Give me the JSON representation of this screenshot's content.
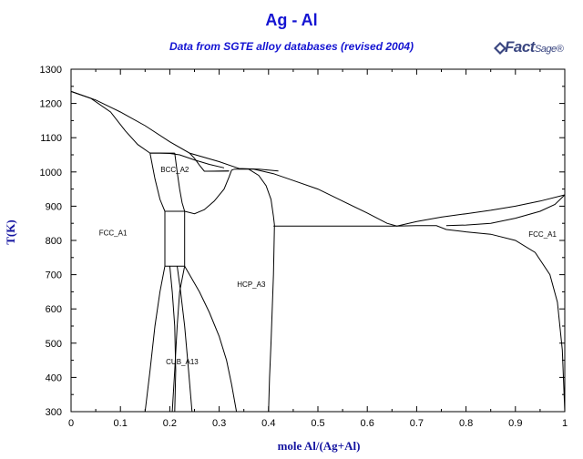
{
  "chart_data": {
    "type": "line",
    "title": "Ag - Al",
    "subtitle": "Data from SGTE alloy databases (revised 2004)",
    "xlabel": "mole Al/(Ag+Al)",
    "ylabel": "T(K)",
    "xlim": [
      0,
      1
    ],
    "ylim": [
      300,
      1300
    ],
    "x_ticks": [
      "0",
      "0.1",
      "0.2",
      "0.3",
      "0.4",
      "0.5",
      "0.6",
      "0.7",
      "0.8",
      "0.9",
      "1"
    ],
    "y_ticks": [
      "300",
      "400",
      "500",
      "600",
      "700",
      "800",
      "900",
      "1000",
      "1100",
      "1200",
      "1300"
    ],
    "grid": false,
    "phase_labels": [
      {
        "text": "FCC_A1",
        "x": 0.085,
        "y": 815
      },
      {
        "text": "BCC_A2",
        "x": 0.21,
        "y": 1000
      },
      {
        "text": "HCP_A3",
        "x": 0.365,
        "y": 665
      },
      {
        "text": "CUB_A13",
        "x": 0.225,
        "y": 438
      },
      {
        "text": "FCC_A1",
        "x": 0.955,
        "y": 810
      }
    ],
    "boundaries": [
      {
        "name": "fcc-liquidus-left",
        "points": [
          [
            0,
            1235
          ],
          [
            0.05,
            1210
          ],
          [
            0.1,
            1175
          ],
          [
            0.15,
            1135
          ],
          [
            0.2,
            1088
          ],
          [
            0.24,
            1055
          ],
          [
            0.3,
            1030
          ],
          [
            0.34,
            1010
          ],
          [
            0.38,
            1008
          ],
          [
            0.42,
            1003
          ]
        ]
      },
      {
        "name": "fcc-solidus-left",
        "points": [
          [
            0,
            1235
          ],
          [
            0.04,
            1215
          ],
          [
            0.08,
            1175
          ],
          [
            0.11,
            1120
          ],
          [
            0.135,
            1080
          ],
          [
            0.16,
            1055
          ]
        ]
      },
      {
        "name": "bcc-liquidus",
        "points": [
          [
            0.16,
            1055
          ],
          [
            0.18,
            1055
          ],
          [
            0.2,
            1054
          ],
          [
            0.22,
            1050
          ],
          [
            0.25,
            1035
          ],
          [
            0.28,
            1022
          ],
          [
            0.31,
            1012
          ]
        ]
      },
      {
        "name": "liquidus-right",
        "points": [
          [
            0.33,
            1008
          ],
          [
            0.37,
            1008
          ],
          [
            0.41,
            995
          ],
          [
            0.45,
            975
          ],
          [
            0.5,
            950
          ],
          [
            0.55,
            915
          ],
          [
            0.6,
            880
          ],
          [
            0.64,
            850
          ],
          [
            0.66,
            842
          ],
          [
            0.7,
            855
          ],
          [
            0.75,
            868
          ],
          [
            0.8,
            878
          ],
          [
            0.85,
            888
          ],
          [
            0.9,
            900
          ],
          [
            0.95,
            915
          ],
          [
            1,
            933
          ]
        ]
      },
      {
        "name": "bcc-solidus-left",
        "points": [
          [
            0.16,
            1055
          ],
          [
            0.17,
            980
          ],
          [
            0.18,
            920
          ],
          [
            0.19,
            885
          ]
        ]
      },
      {
        "name": "bcc-solidus-mid",
        "points": [
          [
            0.21,
            1055
          ],
          [
            0.215,
            1000
          ],
          [
            0.22,
            950
          ],
          [
            0.225,
            910
          ],
          [
            0.23,
            885
          ]
        ]
      },
      {
        "name": "bcc-hcp-left",
        "points": [
          [
            0.23,
            885
          ],
          [
            0.25,
            878
          ],
          [
            0.27,
            890
          ],
          [
            0.29,
            915
          ],
          [
            0.31,
            950
          ],
          [
            0.32,
            985
          ],
          [
            0.325,
            1005
          ],
          [
            0.33,
            1008
          ]
        ]
      },
      {
        "name": "bcc-hcp-right",
        "points": [
          [
            0.24,
            1055
          ],
          [
            0.25,
            1040
          ],
          [
            0.26,
            1020
          ],
          [
            0.27,
            1002
          ],
          [
            0.29,
            1002
          ],
          [
            0.32,
            1003
          ]
        ]
      },
      {
        "name": "hcp-right",
        "points": [
          [
            0.36,
            1008
          ],
          [
            0.38,
            990
          ],
          [
            0.395,
            960
          ],
          [
            0.405,
            920
          ],
          [
            0.41,
            870
          ],
          [
            0.412,
            845
          ],
          [
            0.41,
            700
          ],
          [
            0.405,
            500
          ],
          [
            0.402,
            400
          ],
          [
            0.4,
            300
          ]
        ]
      },
      {
        "name": "hcp-left-lower",
        "points": [
          [
            0.23,
            725
          ],
          [
            0.24,
            700
          ],
          [
            0.26,
            650
          ],
          [
            0.28,
            590
          ],
          [
            0.3,
            520
          ],
          [
            0.315,
            450
          ],
          [
            0.325,
            380
          ],
          [
            0.335,
            300
          ]
        ]
      },
      {
        "name": "eutectic-line",
        "points": [
          [
            0.41,
            842
          ],
          [
            0.66,
            842
          ]
        ]
      },
      {
        "name": "fcc-right-solvus",
        "points": [
          [
            0.66,
            842
          ],
          [
            0.7,
            843
          ],
          [
            0.74,
            843
          ],
          [
            0.76,
            832
          ],
          [
            0.8,
            825
          ],
          [
            0.85,
            818
          ],
          [
            0.9,
            800
          ],
          [
            0.94,
            765
          ],
          [
            0.97,
            700
          ],
          [
            0.985,
            620
          ],
          [
            0.995,
            480
          ],
          [
            1,
            300
          ]
        ]
      },
      {
        "name": "fcc-right-solidus",
        "points": [
          [
            0.76,
            843
          ],
          [
            0.8,
            845
          ],
          [
            0.85,
            850
          ],
          [
            0.9,
            865
          ],
          [
            0.95,
            885
          ],
          [
            0.98,
            905
          ],
          [
            1,
            933
          ]
        ]
      },
      {
        "name": "cub-left",
        "points": [
          [
            0.19,
            725
          ],
          [
            0.18,
            650
          ],
          [
            0.17,
            550
          ],
          [
            0.16,
            420
          ],
          [
            0.15,
            300
          ]
        ]
      },
      {
        "name": "cub-left-inner",
        "points": [
          [
            0.2,
            725
          ],
          [
            0.205,
            650
          ],
          [
            0.21,
            550
          ],
          [
            0.212,
            420
          ],
          [
            0.21,
            300
          ]
        ]
      },
      {
        "name": "cub-right-inner",
        "points": [
          [
            0.215,
            725
          ],
          [
            0.222,
            650
          ],
          [
            0.23,
            550
          ],
          [
            0.238,
            420
          ],
          [
            0.245,
            300
          ]
        ]
      },
      {
        "name": "cub-right",
        "points": [
          [
            0.23,
            725
          ],
          [
            0.22,
            650
          ],
          [
            0.215,
            550
          ],
          [
            0.21,
            420
          ],
          [
            0.205,
            300
          ]
        ]
      },
      {
        "name": "box-top",
        "points": [
          [
            0.19,
            885
          ],
          [
            0.23,
            885
          ]
        ]
      },
      {
        "name": "box-bottom",
        "points": [
          [
            0.19,
            725
          ],
          [
            0.23,
            725
          ]
        ]
      },
      {
        "name": "box-left",
        "points": [
          [
            0.19,
            885
          ],
          [
            0.19,
            725
          ]
        ]
      },
      {
        "name": "box-right",
        "points": [
          [
            0.23,
            885
          ],
          [
            0.23,
            725
          ]
        ]
      },
      {
        "name": "bcc-top-line",
        "points": [
          [
            0.16,
            1055
          ],
          [
            0.21,
            1055
          ]
        ]
      },
      {
        "name": "bcc-hcp-top",
        "points": [
          [
            0.275,
            1002
          ],
          [
            0.32,
            1003
          ]
        ]
      }
    ]
  },
  "logo": {
    "brand": "Fact",
    "sup": "Sage",
    "mark": "®"
  }
}
